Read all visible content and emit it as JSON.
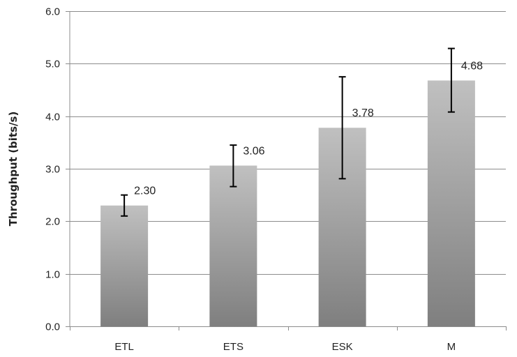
{
  "chart_data": {
    "type": "bar",
    "title": "",
    "xlabel": "",
    "ylabel": "Throughput (bits/s)",
    "ylim": [
      0,
      6
    ],
    "yticks": [
      "0.0",
      "1.0",
      "2.0",
      "3.0",
      "4.0",
      "5.0",
      "6.0"
    ],
    "grid": "horizontal",
    "categories": [
      "ETL",
      "ETS",
      "ESK",
      "M"
    ],
    "values": [
      2.3,
      3.06,
      3.78,
      4.68
    ],
    "value_labels": [
      "2.30",
      "3.06",
      "3.78",
      "4.68"
    ],
    "error_low": [
      2.1,
      2.66,
      2.81,
      4.08
    ],
    "error_high": [
      2.5,
      3.45,
      4.75,
      5.29
    ],
    "colors": {
      "bar_top": "#c0c0c0",
      "bar_bottom": "#7f7f7f",
      "grid": "#8c8c8c",
      "error_bar": "#000000"
    }
  }
}
